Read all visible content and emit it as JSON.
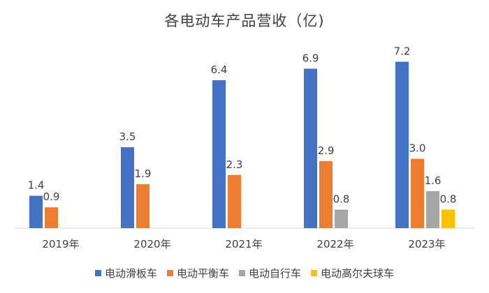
{
  "chart_data": {
    "type": "bar",
    "title": "各电动车产品营收（亿)",
    "categories": [
      "2019年",
      "2020年",
      "2021年",
      "2022年",
      "2023年"
    ],
    "series": [
      {
        "name": "电动滑板车",
        "color": "#4472C4",
        "values": [
          1.4,
          3.5,
          6.4,
          6.9,
          7.2
        ]
      },
      {
        "name": "电动平衡车",
        "color": "#ED7D31",
        "values": [
          0.9,
          1.9,
          2.3,
          2.9,
          3.0
        ]
      },
      {
        "name": "电动自行车",
        "color": "#A5A5A5",
        "values": [
          null,
          null,
          null,
          0.8,
          1.6
        ]
      },
      {
        "name": "电动高尔夫球车",
        "color": "#FFC000",
        "values": [
          null,
          null,
          null,
          null,
          0.8
        ]
      }
    ],
    "data_labels": [
      [
        "1.4",
        "3.5",
        "6.4",
        "6.9",
        "7.2"
      ],
      [
        "0.9",
        "1.9",
        "2.3",
        "2.9",
        "3.0"
      ],
      [
        "",
        "",
        "",
        "0.8",
        "1.6"
      ],
      [
        "",
        "",
        "",
        "",
        "0.8"
      ]
    ],
    "ylim": [
      0,
      8
    ],
    "grid": false,
    "legend_position": "bottom"
  }
}
